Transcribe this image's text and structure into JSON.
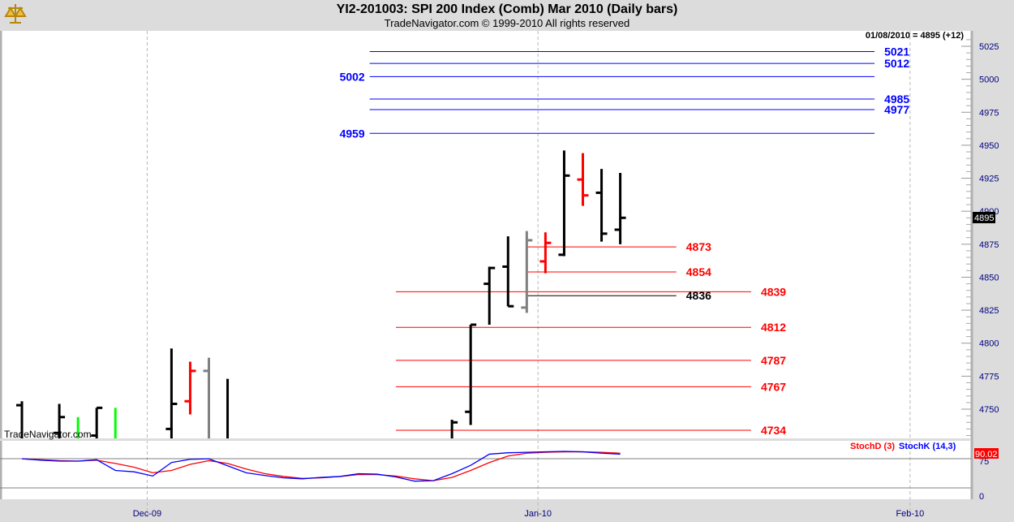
{
  "header": {
    "title": "YI2-201003:  SPI 200 Index (Comb) Mar 2010  (Daily bars)",
    "subtitle": "TradeNavigator.com © 1999-2010 All rights reserved"
  },
  "watermark": "TradeNavigator.com",
  "readout": "01/08/2010 = 4895 (+12)",
  "last_price": "4895",
  "stoch_last": "90.02",
  "colors": {
    "up": "#000000",
    "down": "#ff0000",
    "gray": "#808080",
    "green": "#00ff00",
    "blue_level": "#0000ff",
    "red_level": "#ff0000"
  },
  "chart_data": [
    {
      "type": "ohlc",
      "title": "SPI 200 Index (Comb) Mar 2010 (Daily bars)",
      "ylim": [
        4725,
        5035
      ],
      "yticks": [
        4750,
        4775,
        4800,
        4825,
        4850,
        4875,
        4900,
        4925,
        4950,
        4975,
        5000,
        5025
      ],
      "xticks": [
        {
          "label": "Dec-09",
          "i": 6.7
        },
        {
          "label": "Jan-10",
          "i": 27.6
        },
        {
          "label": "Feb-10",
          "i": 47.5
        }
      ],
      "bars": [
        {
          "i": 0,
          "o": 4753,
          "h": 4756,
          "l": 4720,
          "c": null,
          "color": "up"
        },
        {
          "i": 2,
          "o": 4732,
          "h": 4754,
          "l": 4720,
          "c": 4744,
          "color": "up"
        },
        {
          "i": 3,
          "o": null,
          "h": 4744,
          "l": 4720,
          "c": null,
          "color": "green"
        },
        {
          "i": 4,
          "o": 4730,
          "h": 4751,
          "l": 4720,
          "c": 4751,
          "color": "up"
        },
        {
          "i": 5,
          "o": null,
          "h": 4751,
          "l": 4720,
          "c": null,
          "color": "green"
        },
        {
          "i": 8,
          "o": 4735,
          "h": 4796,
          "l": 4720,
          "c": 4754,
          "color": "up"
        },
        {
          "i": 9,
          "o": 4756,
          "h": 4786,
          "l": 4746,
          "c": 4779,
          "color": "down"
        },
        {
          "i": 10,
          "o": 4779,
          "h": 4789,
          "l": 4720,
          "c": null,
          "color": "gray"
        },
        {
          "i": 11,
          "o": null,
          "h": 4773,
          "l": 4720,
          "c": null,
          "color": "up"
        },
        {
          "i": 23,
          "o": null,
          "h": 4742,
          "l": 4720,
          "c": 4740,
          "color": "up"
        },
        {
          "i": 24,
          "o": 4748,
          "h": 4814,
          "l": 4738,
          "c": 4814,
          "color": "up"
        },
        {
          "i": 25,
          "o": 4845,
          "h": 4858,
          "l": 4814,
          "c": 4857,
          "color": "up"
        },
        {
          "i": 26,
          "o": 4858,
          "h": 4881,
          "l": 4828,
          "c": 4828,
          "color": "up"
        },
        {
          "i": 27,
          "o": 4827,
          "h": 4885,
          "l": 4823,
          "c": 4878,
          "color": "gray"
        },
        {
          "i": 28,
          "o": 4862,
          "h": 4884,
          "l": 4853,
          "c": 4876,
          "color": "down"
        },
        {
          "i": 29,
          "o": 4867,
          "h": 4946,
          "l": 4866,
          "c": 4927,
          "color": "up"
        },
        {
          "i": 30,
          "o": 4924,
          "h": 4944,
          "l": 4904,
          "c": 4912,
          "color": "down"
        },
        {
          "i": 31,
          "o": 4914,
          "h": 4932,
          "l": 4877,
          "c": 4883,
          "color": "up"
        },
        {
          "i": 32,
          "o": 4886,
          "h": 4929,
          "l": 4875,
          "c": 4895,
          "color": "up"
        }
      ],
      "levels": [
        {
          "value": "5021",
          "color": "blue",
          "from": 18.6,
          "to": 45.6,
          "label": "right"
        },
        {
          "value": "5012",
          "color": "blue",
          "from": 18.6,
          "to": 45.6,
          "label": "right"
        },
        {
          "value": "5002",
          "color": "blue",
          "from": 18.6,
          "to": 45.6,
          "label": "left"
        },
        {
          "value": "4985",
          "color": "blue",
          "from": 18.6,
          "to": 45.6,
          "label": "right"
        },
        {
          "value": "4977",
          "color": "blue",
          "from": 18.6,
          "to": 45.6,
          "label": "right"
        },
        {
          "value": "4959",
          "color": "blue",
          "from": 18.6,
          "to": 45.6,
          "label": "left"
        },
        {
          "value": "4873",
          "color": "red",
          "from": 27,
          "to": 35,
          "label": "right"
        },
        {
          "value": "4854",
          "color": "red",
          "from": 27,
          "to": 35,
          "label": "right"
        },
        {
          "value": "4839",
          "color": "red",
          "from": 20,
          "to": 39,
          "label": "right"
        },
        {
          "value": "4836",
          "color": "black",
          "from": 27,
          "to": 35,
          "label": "right"
        },
        {
          "value": "4812",
          "color": "red",
          "from": 20,
          "to": 39,
          "label": "right"
        },
        {
          "value": "4787",
          "color": "red",
          "from": 20,
          "to": 39,
          "label": "right"
        },
        {
          "value": "4767",
          "color": "red",
          "from": 20,
          "to": 39,
          "label": "right"
        },
        {
          "value": "4734",
          "color": "red",
          "from": 20,
          "to": 39,
          "label": "right"
        }
      ]
    },
    {
      "type": "line",
      "title": "Stochastic",
      "ylim": [
        0,
        100
      ],
      "yticks": [
        0,
        75
      ],
      "series": [
        {
          "name": "StochD (3)",
          "color": "#ff0000",
          "values": [
            80,
            78,
            76,
            75,
            77,
            70,
            62,
            50,
            55,
            68,
            76,
            70,
            58,
            48,
            42,
            38,
            39,
            42,
            46,
            46,
            43,
            37,
            33,
            40,
            55,
            72,
            86,
            92,
            94,
            95,
            95,
            94,
            92
          ]
        },
        {
          "name": "StochK (14,3)",
          "color": "#0000ff",
          "values": [
            80,
            77,
            75,
            75,
            78,
            55,
            52,
            43,
            72,
            79,
            80,
            65,
            50,
            44,
            39,
            37,
            40,
            42,
            48,
            47,
            41,
            32,
            33,
            48,
            66,
            90,
            93,
            94,
            95,
            96,
            95,
            92,
            90
          ]
        }
      ]
    }
  ]
}
